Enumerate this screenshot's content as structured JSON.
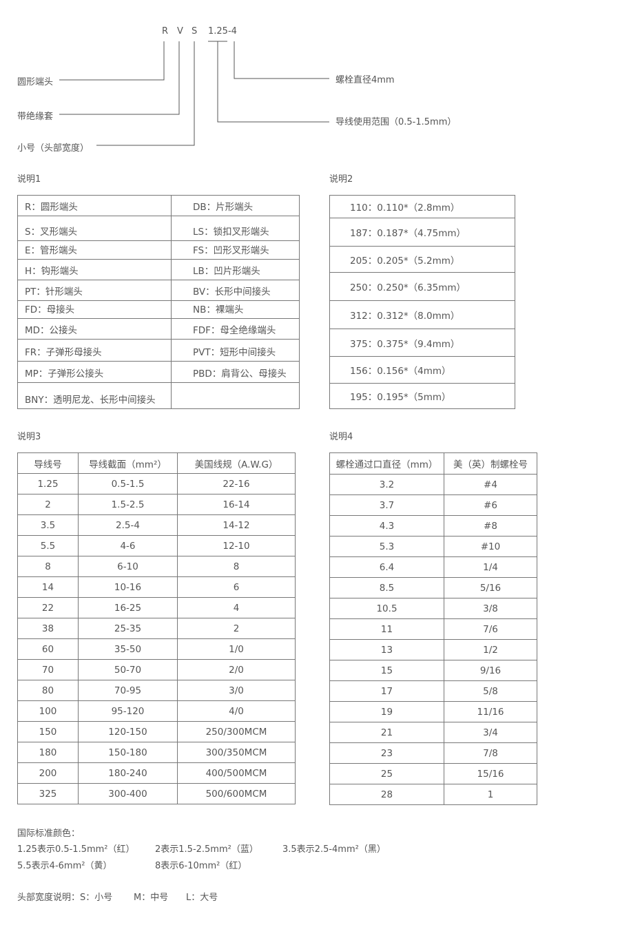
{
  "diagram": {
    "code_letters": [
      "R",
      "V",
      "S",
      "1.25-4"
    ],
    "left_labels": [
      "圆形端头",
      "带绝缘套",
      "小号（头部宽度）"
    ],
    "right_labels": [
      "螺栓直径4mm",
      "导线使用范围（0.5-1.5mm）"
    ]
  },
  "note1": {
    "title": "说明1",
    "rows": [
      [
        "R：圆形端头",
        "DB：片形端头"
      ],
      [
        "S：叉形端头",
        "LS：锁扣叉形端头"
      ],
      [
        "E：管形端头",
        "FS：凹形叉形端头"
      ],
      [
        "H：钩形端头",
        "LB：凹片形端头"
      ],
      [
        "PT：针形端头",
        "BV：长形中间接头"
      ],
      [
        "FD：母接头",
        "NB：裸端头"
      ],
      [
        "MD：公接头",
        "FDF：母全绝缘端头"
      ],
      [
        "FR：子弹形母接头",
        "PVT：短形中间接头"
      ],
      [
        "MP：子弹形公接头",
        "PBD：肩背公、母接头"
      ],
      [
        "BNY：透明尼龙、长形中间接头",
        ""
      ]
    ]
  },
  "note2": {
    "title": "说明2",
    "rows": [
      "110：0.110*（2.8mm）",
      "187：0.187*（4.75mm）",
      "205：0.205*（5.2mm）",
      "250：0.250*（6.35mm）",
      "312：0.312*（8.0mm）",
      "375：0.375*（9.4mm）",
      "156：0.156*（4mm）",
      "195：0.195*（5mm）"
    ]
  },
  "note3": {
    "title": "说明3",
    "headers": [
      "导线号",
      "导线截面（mm²）",
      "美国线规（A.W.G）"
    ],
    "rows": [
      [
        "1.25",
        "0.5-1.5",
        "22-16"
      ],
      [
        "2",
        "1.5-2.5",
        "16-14"
      ],
      [
        "3.5",
        "2.5-4",
        "14-12"
      ],
      [
        "5.5",
        "4-6",
        "12-10"
      ],
      [
        "8",
        "6-10",
        "8"
      ],
      [
        "14",
        "10-16",
        "6"
      ],
      [
        "22",
        "16-25",
        "4"
      ],
      [
        "38",
        "25-35",
        "2"
      ],
      [
        "60",
        "35-50",
        "1/0"
      ],
      [
        "70",
        "50-70",
        "2/0"
      ],
      [
        "80",
        "70-95",
        "3/0"
      ],
      [
        "100",
        "95-120",
        "4/0"
      ],
      [
        "150",
        "120-150",
        "250/300MCM"
      ],
      [
        "180",
        "150-180",
        "300/350MCM"
      ],
      [
        "200",
        "180-240",
        "400/500MCM"
      ],
      [
        "325",
        "300-400",
        "500/600MCM"
      ]
    ]
  },
  "note4": {
    "title": "说明4",
    "headers": [
      "螺栓通过口直径（mm）",
      "美（英）制螺栓号"
    ],
    "rows": [
      [
        "3.2",
        "#4"
      ],
      [
        "3.7",
        "#6"
      ],
      [
        "4.3",
        "#8"
      ],
      [
        "5.3",
        "#10"
      ],
      [
        "6.4",
        "1/4"
      ],
      [
        "8.5",
        "5/16"
      ],
      [
        "10.5",
        "3/8"
      ],
      [
        "11",
        "7/6"
      ],
      [
        "13",
        "1/2"
      ],
      [
        "15",
        "9/16"
      ],
      [
        "17",
        "5/8"
      ],
      [
        "19",
        "11/16"
      ],
      [
        "21",
        "3/4"
      ],
      [
        "23",
        "7/8"
      ],
      [
        "25",
        "15/16"
      ],
      [
        "28",
        "1"
      ]
    ]
  },
  "colors": {
    "title": "国际标准颜色：",
    "line1": [
      "1.25表示0.5-1.5mm²（红）",
      "2表示1.5-2.5mm²（蓝）",
      "3.5表示2.5-4mm²（黑）"
    ],
    "line2": [
      "5.5表示4-6mm²（黄）",
      "8表示6-10mm²（红）"
    ]
  },
  "head_width": {
    "items": [
      "头部宽度说明：S：小号",
      "M：中号",
      "L：大号"
    ]
  }
}
